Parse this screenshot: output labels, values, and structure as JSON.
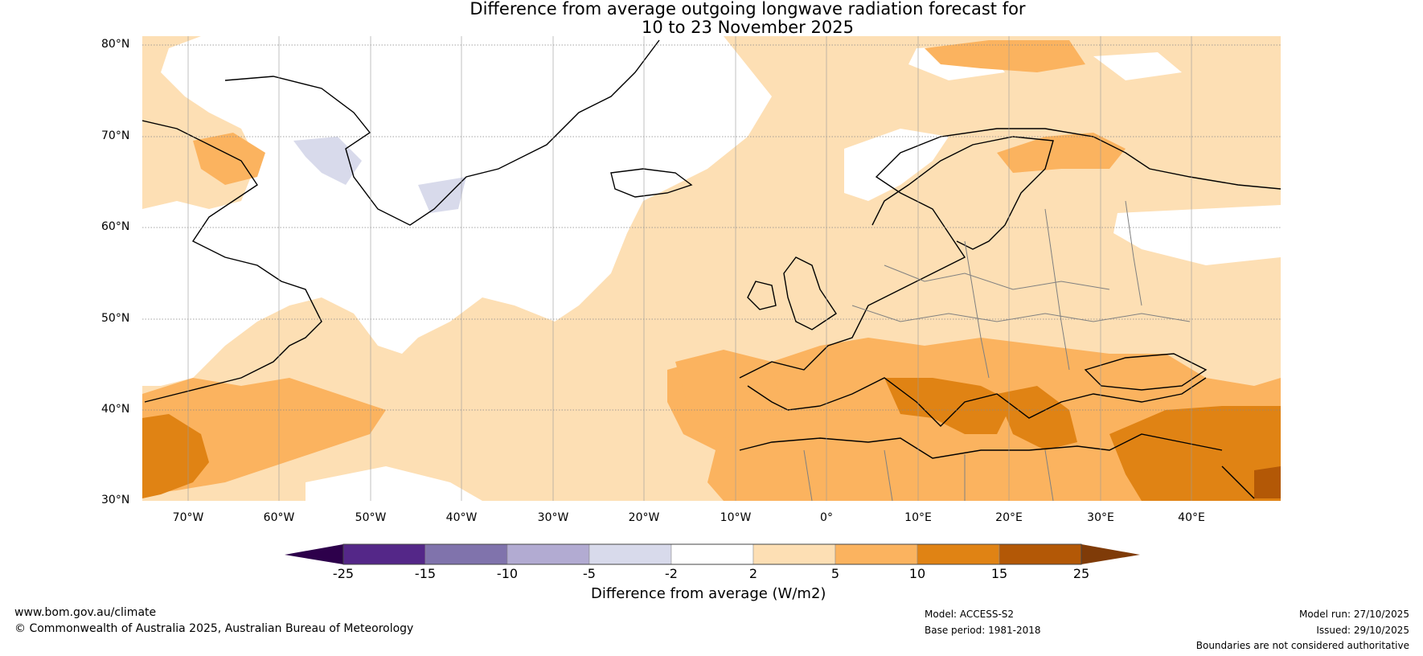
{
  "title": {
    "line1": "Difference from average outgoing longwave radiation forecast for",
    "line2": "10 to 23 November 2025"
  },
  "map": {
    "lat_labels": [
      "80°N",
      "70°N",
      "60°N",
      "50°N",
      "40°N",
      "30°N"
    ],
    "lon_labels": [
      "70°W",
      "60°W",
      "50°W",
      "40°W",
      "30°W",
      "20°W",
      "10°W",
      "0°",
      "10°E",
      "20°E",
      "30°E",
      "40°E"
    ],
    "colors": {
      "ocean_neutral": "#ffffff",
      "anom_2_5": "#fddfb4",
      "anom_5_10": "#fbb35f",
      "anom_10_15": "#e08314",
      "anom_15_25": "#b35806",
      "anom_neg_2_5": "#d8daeb",
      "coast": "#000000",
      "borders": "#808080"
    }
  },
  "colorbar": {
    "label": "Difference from average (W/m2)",
    "ticks": [
      "-25",
      "-15",
      "-10",
      "-5",
      "-2",
      "2",
      "5",
      "10",
      "15",
      "25"
    ],
    "colors": [
      "#2d004b",
      "#542788",
      "#8073ac",
      "#b2abd2",
      "#d8daeb",
      "#ffffff",
      "#fddfb4",
      "#fbb35f",
      "#e08314",
      "#b35806",
      "#7f3b08"
    ]
  },
  "footer": {
    "website": "www.bom.gov.au/climate",
    "copyright": "© Commonwealth of Australia 2025, Australian Bureau of Meteorology",
    "model": "Model: ACCESS-S2",
    "base_period": "Base period: 1981-2018",
    "model_run": "Model run: 27/10/2025",
    "issued": "Issued: 29/10/2025",
    "disclaimer": "Boundaries are not considered authoritative"
  }
}
